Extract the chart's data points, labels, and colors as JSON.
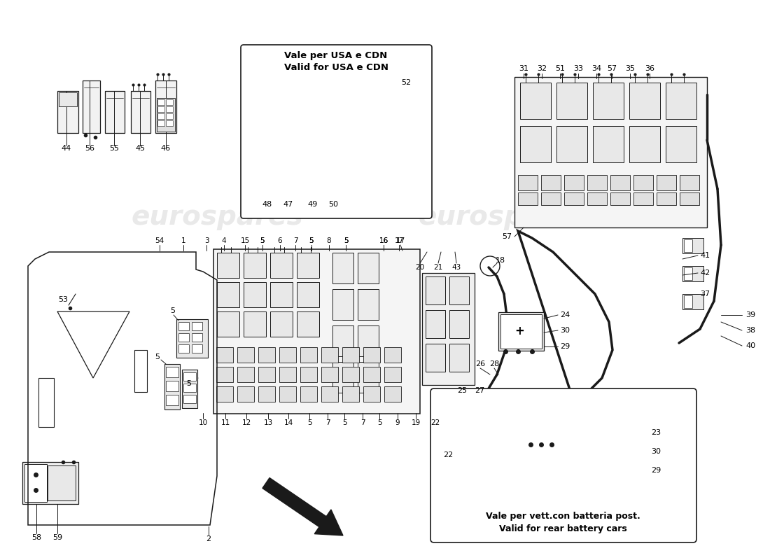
{
  "background_color": "#ffffff",
  "watermark_text": "eurospares",
  "anno_usa1": "Vale per USA e CDN",
  "anno_usa2": "Valid for USA e CDN",
  "anno_bat1": "Vale per vett.con batteria post.",
  "anno_bat2": "Valid for rear battery cars",
  "lc": "#1a1a1a",
  "wm_color": "#c8c8c8",
  "fig_w": 11.0,
  "fig_h": 8.0,
  "dpi": 100
}
